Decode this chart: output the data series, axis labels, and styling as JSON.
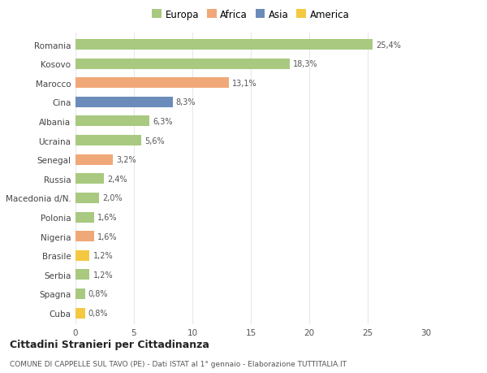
{
  "countries": [
    "Romania",
    "Kosovo",
    "Marocco",
    "Cina",
    "Albania",
    "Ucraina",
    "Senegal",
    "Russia",
    "Macedonia d/N.",
    "Polonia",
    "Nigeria",
    "Brasile",
    "Serbia",
    "Spagna",
    "Cuba"
  ],
  "values": [
    25.4,
    18.3,
    13.1,
    8.3,
    6.3,
    5.6,
    3.2,
    2.4,
    2.0,
    1.6,
    1.6,
    1.2,
    1.2,
    0.8,
    0.8
  ],
  "labels": [
    "25,4%",
    "18,3%",
    "13,1%",
    "8,3%",
    "6,3%",
    "5,6%",
    "3,2%",
    "2,4%",
    "2,0%",
    "1,6%",
    "1,6%",
    "1,2%",
    "1,2%",
    "0,8%",
    "0,8%"
  ],
  "colors": [
    "#a8c97f",
    "#a8c97f",
    "#f0a878",
    "#6b8cba",
    "#a8c97f",
    "#a8c97f",
    "#f0a878",
    "#a8c97f",
    "#a8c97f",
    "#a8c97f",
    "#f0a878",
    "#f5c842",
    "#a8c97f",
    "#a8c97f",
    "#f5c842"
  ],
  "legend_labels": [
    "Europa",
    "Africa",
    "Asia",
    "America"
  ],
  "legend_colors": [
    "#a8c97f",
    "#f0a878",
    "#6b8cba",
    "#f5c842"
  ],
  "title": "Cittadini Stranieri per Cittadinanza",
  "subtitle": "COMUNE DI CAPPELLE SUL TAVO (PE) - Dati ISTAT al 1° gennaio - Elaborazione TUTTITALIA.IT",
  "xlim": [
    0,
    30
  ],
  "xticks": [
    0,
    5,
    10,
    15,
    20,
    25,
    30
  ],
  "background_color": "#ffffff",
  "grid_color": "#e8e8e8",
  "bar_height": 0.55
}
